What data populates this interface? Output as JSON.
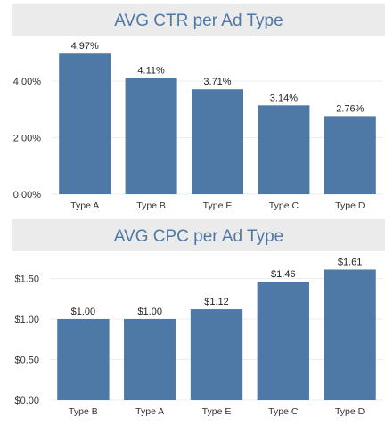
{
  "chart_data": [
    {
      "type": "bar",
      "title": "AVG CTR per Ad Type",
      "categories": [
        "Type A",
        "Type B",
        "Type E",
        "Type C",
        "Type D"
      ],
      "values": [
        4.97,
        4.11,
        3.71,
        3.14,
        2.76
      ],
      "data_labels": [
        "4.97%",
        "4.11%",
        "3.71%",
        "3.14%",
        "2.76%"
      ],
      "yticks": [
        0,
        2,
        4
      ],
      "ytick_labels": [
        "0.00%",
        "2.00%",
        "4.00%"
      ],
      "ylim": [
        0,
        5.45
      ],
      "grid": true,
      "xlabel": "",
      "ylabel": ""
    },
    {
      "type": "bar",
      "title": "AVG CPC per Ad Type",
      "categories": [
        "Type B",
        "Type A",
        "Type E",
        "Type C",
        "Type D"
      ],
      "values": [
        1.0,
        1.0,
        1.12,
        1.46,
        1.61
      ],
      "data_labels": [
        "$1.00",
        "$1.00",
        "$1.12",
        "$1.46",
        "$1.61"
      ],
      "yticks": [
        0,
        0.5,
        1.0,
        1.5
      ],
      "ytick_labels": [
        "$0.00",
        "$0.50",
        "$1.00",
        "$1.50"
      ],
      "ylim": [
        0,
        1.78
      ],
      "grid": true,
      "xlabel": "",
      "ylabel": ""
    }
  ],
  "colors": {
    "bar": "#4e79a7",
    "title_text": "#4e79a7",
    "title_bg": "#ebebeb",
    "gridline": "#eeeeee",
    "axis_text": "#333333",
    "label_text": "#222222"
  }
}
